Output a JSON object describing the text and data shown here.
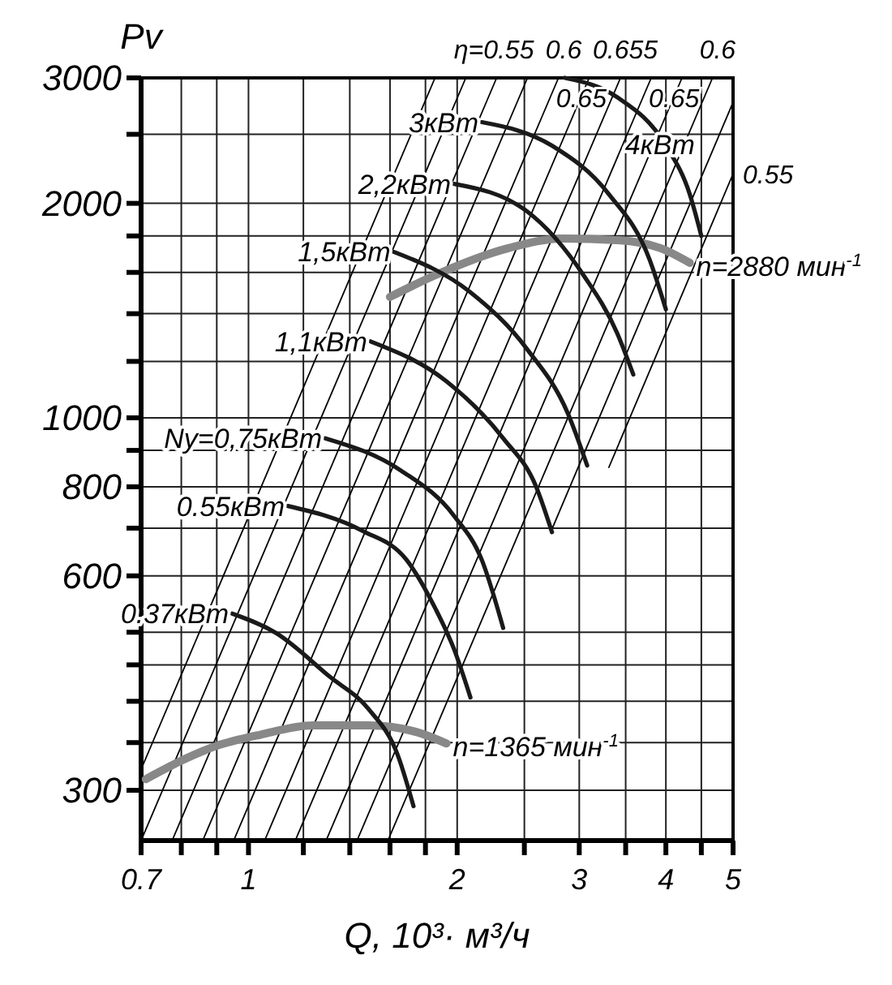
{
  "chart_data": {
    "type": "line",
    "xlabel": "Q, 10³· м³/ч",
    "ylabel": "Pv",
    "log": "xy",
    "grid": true,
    "xlim": [
      0.7,
      5
    ],
    "ylim": [
      255,
      3000
    ],
    "xticks": [
      0.7,
      {
        "value": 0.8,
        "label": null
      },
      {
        "value": 0.9,
        "label": null
      },
      1,
      {
        "value": 1.2,
        "label": null
      },
      {
        "value": 1.4,
        "label": null
      },
      {
        "value": 1.6,
        "label": null
      },
      {
        "value": 1.8,
        "label": null
      },
      2,
      {
        "value": 2.5,
        "label": null
      },
      3,
      {
        "value": 3.5,
        "label": null
      },
      4,
      {
        "value": 4.5,
        "label": null
      },
      5
    ],
    "yticks": [
      300,
      {
        "value": 350,
        "label": null
      },
      {
        "value": 400,
        "label": null
      },
      {
        "value": 450,
        "label": null
      },
      {
        "value": 500,
        "label": null
      },
      600,
      {
        "value": 700,
        "label": null
      },
      800,
      {
        "value": 900,
        "label": null
      },
      1000,
      {
        "value": 1200,
        "label": null
      },
      {
        "value": 1400,
        "label": null
      },
      {
        "value": 1600,
        "label": null
      },
      {
        "value": 1800,
        "label": null
      },
      2000,
      {
        "value": 2500,
        "label": null
      },
      3000
    ],
    "series": [
      {
        "color": "#000000",
        "x": [
          0.7,
          1.858
        ],
        "values": [
          321,
          3000
        ]
      },
      {
        "color": "#000000",
        "x": [
          0.7,
          2.058
        ],
        "values": [
          255,
          3000
        ]
      },
      {
        "color": "#000000",
        "x": [
          0.776,
          2.28
        ],
        "values": [
          255,
          3000
        ]
      },
      {
        "color": "#000000",
        "x": [
          0.859,
          2.526
        ],
        "values": [
          255,
          3000
        ]
      },
      {
        "color": "#000000",
        "x": [
          0.952,
          2.8
        ],
        "values": [
          255,
          3000
        ]
      },
      {
        "color": "#000000",
        "x": [
          1.055,
          3.1
        ],
        "values": [
          255,
          3000
        ]
      },
      {
        "color": "#000000",
        "x": [
          1.168,
          3.44
        ],
        "values": [
          255,
          3000
        ]
      },
      {
        "color": "#000000",
        "x": [
          1.294,
          3.81
        ],
        "values": [
          255,
          3000
        ]
      },
      {
        "color": "#000000",
        "x": [
          1.434,
          4.22
        ],
        "values": [
          255,
          3000
        ]
      },
      {
        "color": "#000000",
        "x": [
          1.589,
          4.67
        ],
        "values": [
          255,
          3000
        ]
      },
      {
        "color": "#000000",
        "x": [
          2.74,
          5
        ],
        "values": [
          698,
          2772
        ]
      },
      {
        "color": "#000000",
        "x": [
          3.31,
          5
        ],
        "values": [
          852,
          2200
        ]
      },
      {
        "name": "n=2880 мин$^{-1}$",
        "color": "#888888",
        "x": [
          1.6,
          1.85,
          2.37,
          2.84,
          3.4,
          3.93,
          4.33
        ],
        "values": [
          1478,
          1582,
          1730,
          1785,
          1776,
          1730,
          1650
        ]
      },
      {
        "name": "n=1365 мин$^{-1}$",
        "color": "#888888",
        "x": [
          0.711,
          0.897,
          1.04,
          1.24,
          1.49,
          1.75,
          1.93
        ],
        "values": [
          311,
          346,
          359,
          370,
          370,
          362,
          349
        ]
      },
      {
        "name": "0.37кВт",
        "color": "#1a1a1a",
        "x": [
          0.947,
          1.095,
          1.31,
          1.49,
          1.64,
          1.73
        ],
        "values": [
          531,
          499,
          433,
          390,
          337,
          285
        ]
      },
      {
        "name": "0.55кВт",
        "color": "#1a1a1a",
        "x": [
          1.14,
          1.46,
          1.69,
          1.86,
          1.98,
          2.09
        ],
        "values": [
          752,
          694,
          632,
          540,
          473,
          405
        ]
      },
      {
        "name": "Ny=0,75кВт",
        "color": "#1a1a1a",
        "x": [
          1.29,
          1.66,
          1.98,
          2.17,
          2.33
        ],
        "values": [
          936,
          843,
          728,
          632,
          507
        ]
      },
      {
        "name": "1,1кВт",
        "color": "#1a1a1a",
        "x": [
          1.5,
          1.93,
          2.33,
          2.6,
          2.74
        ],
        "values": [
          1280,
          1125,
          936,
          800,
          691
        ]
      },
      {
        "name": "1,5кВт",
        "color": "#1a1a1a",
        "x": [
          1.62,
          2.09,
          2.52,
          2.89,
          3.08
        ],
        "values": [
          1710,
          1500,
          1250,
          1013,
          857
        ]
      },
      {
        "name": "2,2кВт",
        "color": "#1a1a1a",
        "x": [
          1.98,
          2.52,
          3.05,
          3.4,
          3.59
        ],
        "values": [
          2130,
          1950,
          1580,
          1317,
          1150
        ]
      },
      {
        "name": "3кВт",
        "color": "#1a1a1a",
        "x": [
          2.17,
          2.74,
          3.31,
          3.79,
          4.0
        ],
        "values": [
          2600,
          2410,
          2060,
          1667,
          1420
        ]
      },
      {
        "name": "4кВт",
        "color": "#1a1a1a",
        "x": [
          2.86,
          3.4,
          4.0,
          4.33,
          4.5
        ],
        "values": [
          3000,
          2820,
          2410,
          2060,
          1800
        ]
      }
    ],
    "annotations": [
      {
        "text": "η=0.55",
        "x": 2.526,
        "y": 3000
      },
      {
        "text": "0.6",
        "x": 2.8,
        "y": 3000
      },
      {
        "text": "0.655",
        "x": 3.81,
        "y": 3000
      },
      {
        "text": "0.6",
        "x": 4.67,
        "y": 3000
      },
      {
        "text": "0.65",
        "x": 3.02,
        "y": 2820
      },
      {
        "text": "0.65",
        "x": 4.11,
        "y": 2820
      },
      {
        "text": "0.55",
        "x": 5,
        "y": 2200
      }
    ]
  }
}
